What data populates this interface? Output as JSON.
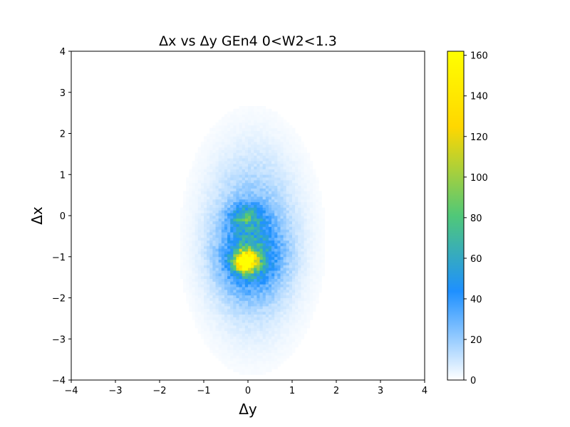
{
  "chart_data": {
    "type": "heatmap",
    "title": "Δx vs Δy GEn4 0<W2<1.3",
    "xlabel": "Δy",
    "ylabel": "Δx",
    "xlim": [
      -4,
      4
    ],
    "ylim": [
      -4,
      4
    ],
    "x_ticks": [
      "−4",
      "−3",
      "−2",
      "−1",
      "0",
      "1",
      "2",
      "3",
      "4"
    ],
    "y_ticks": [
      "−4",
      "−3",
      "−2",
      "−1",
      "0",
      "1",
      "2",
      "3",
      "4"
    ],
    "grid": false,
    "colorbar": {
      "range": [
        0,
        162
      ],
      "ticks": [
        "0",
        "20",
        "40",
        "60",
        "80",
        "100",
        "120",
        "140",
        "160"
      ],
      "colors": [
        "#ffffff",
        "#1e90ff",
        "#50c878",
        "#ffd700",
        "#ffff00"
      ]
    },
    "components": [
      {
        "kind": "peak",
        "x_center": -0.05,
        "y_center": -1.1,
        "x_sigma": 0.17,
        "y_sigma": 0.17,
        "max_count": 160
      },
      {
        "kind": "peak",
        "x_center": -0.05,
        "y_center": -0.02,
        "x_sigma": 0.25,
        "y_sigma": 0.2,
        "max_count": 45
      },
      {
        "kind": "core",
        "x_center": 0.05,
        "y_center": -1.0,
        "x_sigma": 0.45,
        "y_sigma": 0.55,
        "max_count": 40
      },
      {
        "kind": "halo",
        "x_center": 0.1,
        "y_center": -0.6,
        "x_sigma": 0.65,
        "y_sigma": 1.3,
        "max_count": 30
      }
    ]
  }
}
